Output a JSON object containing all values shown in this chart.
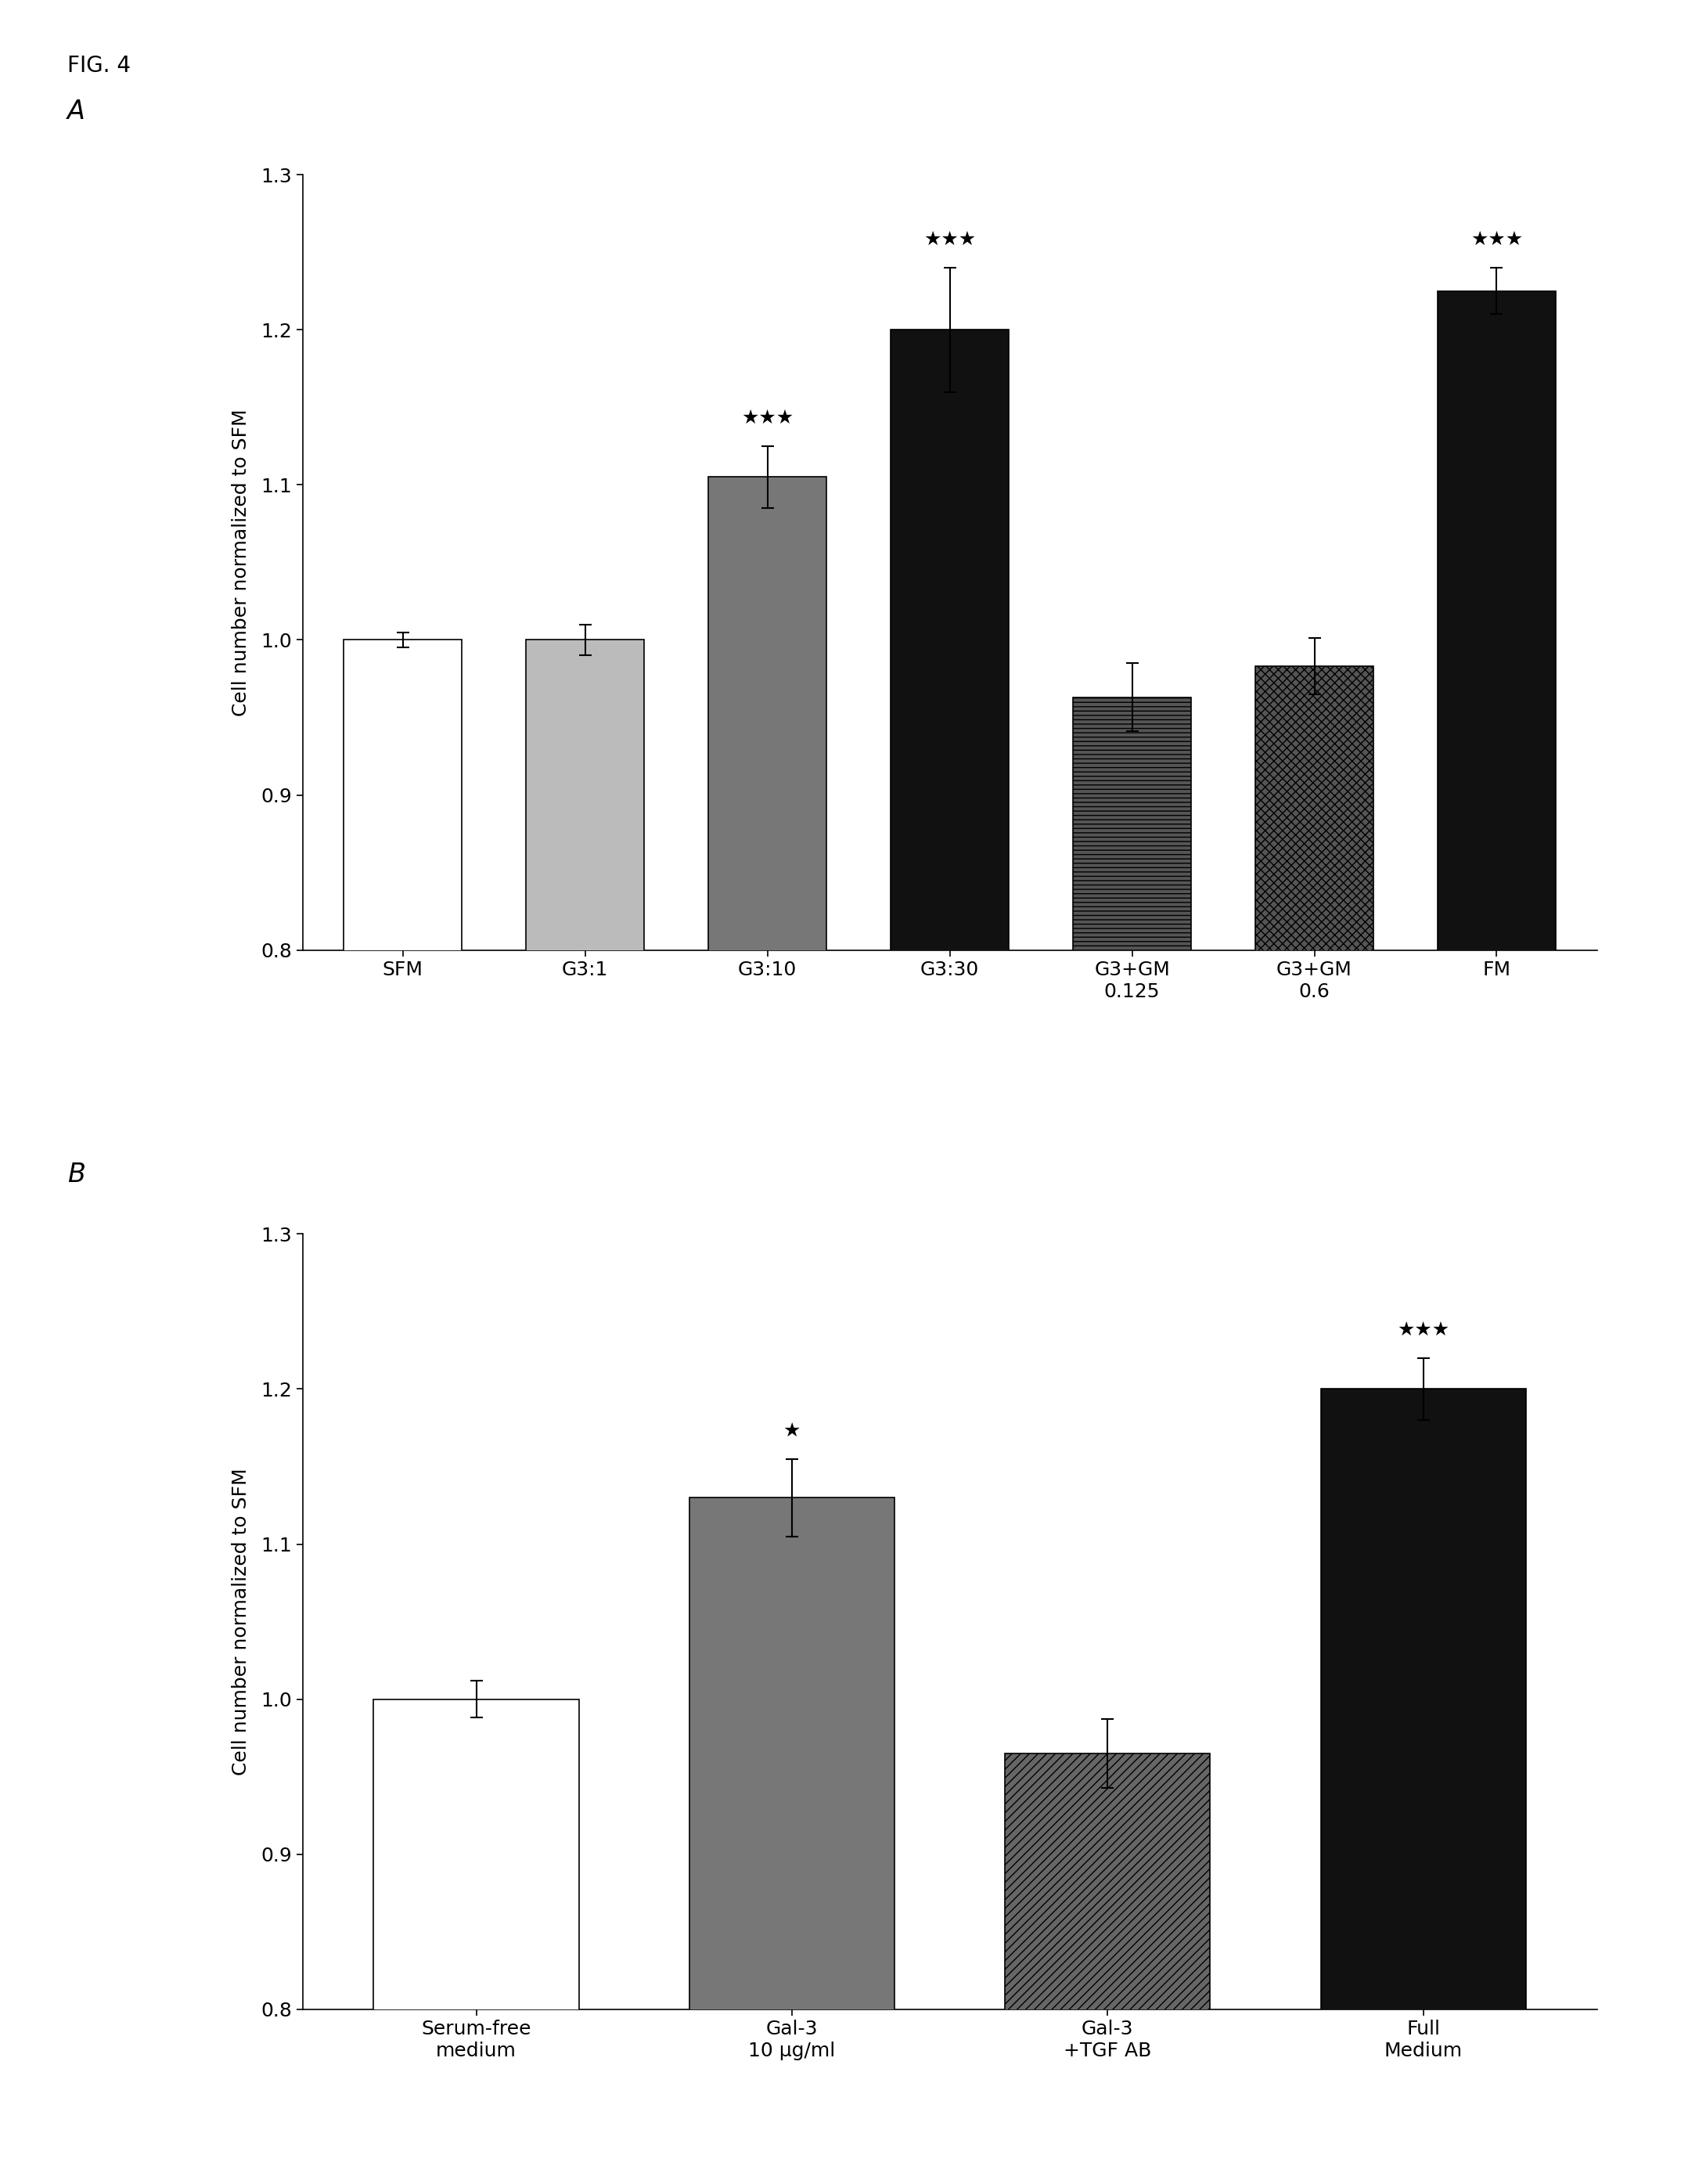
{
  "fig_label": "FIG. 4",
  "panel_A_label": "A",
  "panel_B_label": "B",
  "chartA": {
    "categories": [
      "SFM",
      "G3:1",
      "G3:10",
      "G3:30",
      "G3+GM\n0.125",
      "G3+GM\n0.6",
      "FM"
    ],
    "values": [
      1.0,
      1.0,
      1.105,
      1.2,
      0.963,
      0.983,
      1.225
    ],
    "errors": [
      0.005,
      0.01,
      0.02,
      0.04,
      0.022,
      0.018,
      0.015
    ],
    "stars": [
      "",
      "",
      "★★★",
      "★★★",
      "",
      "",
      "★★★"
    ],
    "colors": [
      "white",
      "#bbbbbb",
      "#777777",
      "#111111",
      "#555555",
      "#555555",
      "#111111"
    ],
    "hatch": [
      "",
      "",
      "",
      "",
      "---",
      "xxx",
      ""
    ],
    "edgecolor": [
      "black",
      "black",
      "black",
      "black",
      "black",
      "black",
      "black"
    ],
    "ylabel": "Cell number normalized to SFM",
    "ylim": [
      0.8,
      1.3
    ],
    "yticks": [
      0.8,
      0.9,
      1.0,
      1.1,
      1.2,
      1.3
    ]
  },
  "chartB": {
    "categories": [
      "Serum-free\nmedium",
      "Gal-3\n10 μg/ml",
      "Gal-3\n+TGF AB",
      "Full\nMedium"
    ],
    "values": [
      1.0,
      1.13,
      0.965,
      1.2
    ],
    "errors": [
      0.012,
      0.025,
      0.022,
      0.02
    ],
    "stars": [
      "",
      "★",
      "",
      "★★★"
    ],
    "colors": [
      "white",
      "#777777",
      "#666666",
      "#111111"
    ],
    "hatch": [
      "",
      "",
      "///",
      ""
    ],
    "edgecolor": [
      "black",
      "black",
      "black",
      "black"
    ],
    "ylabel": "Cell number normalized to SFM",
    "ylim": [
      0.8,
      1.3
    ],
    "yticks": [
      0.8,
      0.9,
      1.0,
      1.1,
      1.2,
      1.3
    ]
  },
  "background_color": "#ffffff",
  "bar_width": 0.65,
  "fontsize_ticks": 18,
  "fontsize_ylabel": 18,
  "fontsize_stars": 18,
  "fontsize_panel": 24,
  "fontsize_fig": 20
}
